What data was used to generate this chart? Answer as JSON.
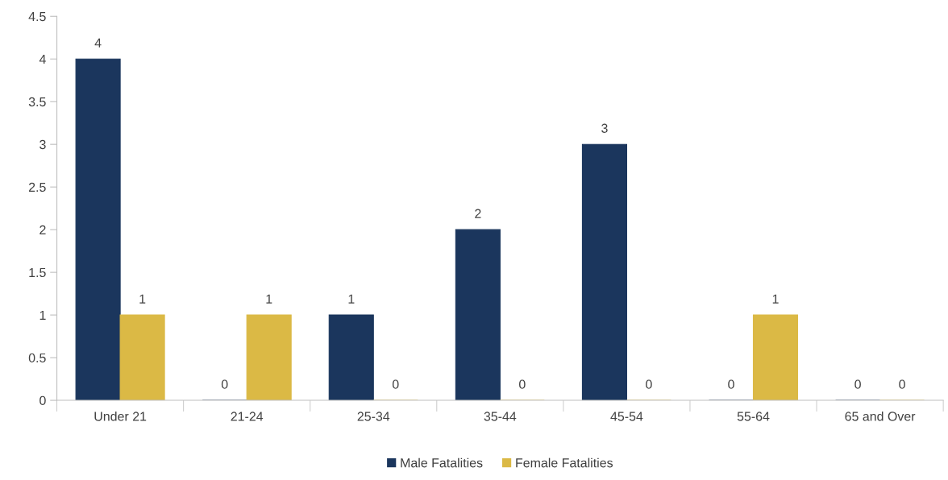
{
  "chart_data": {
    "type": "bar",
    "categories": [
      "Under 21",
      "21-24",
      "25-34",
      "35-44",
      "45-54",
      "55-64",
      "65 and Over"
    ],
    "series": [
      {
        "name": "Male Fatalities",
        "color": "#1b365d",
        "values": [
          4,
          0,
          1,
          2,
          3,
          0,
          0
        ]
      },
      {
        "name": "Female Fatalities",
        "color": "#dbb945",
        "values": [
          1,
          1,
          0,
          0,
          0,
          1,
          0
        ]
      }
    ],
    "ylim": [
      0,
      4.5
    ],
    "yticks": [
      0,
      0.5,
      1,
      1.5,
      2,
      2.5,
      3,
      3.5,
      4,
      4.5
    ],
    "grid": false,
    "legend": "bottom",
    "data_labels": true
  }
}
